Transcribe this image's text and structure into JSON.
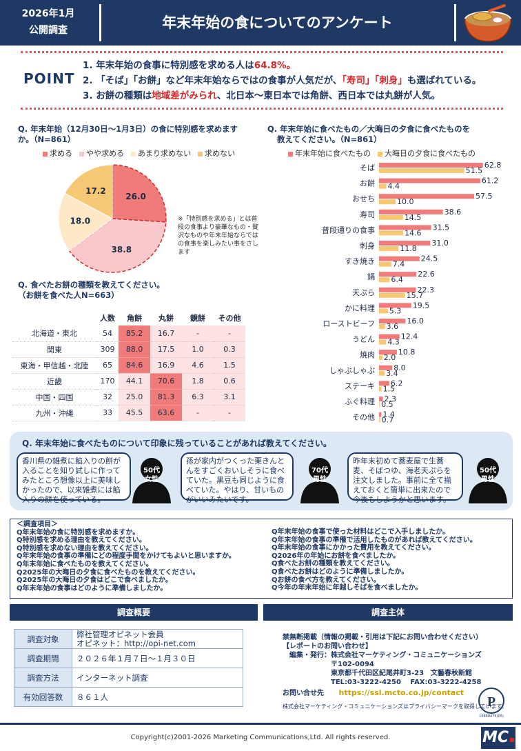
{
  "header": {
    "date_line1": "2026年1月",
    "date_line2": "公開調査",
    "title": "年末年始の食についてのアンケート"
  },
  "point": {
    "label": "POINT",
    "items": [
      {
        "num": "1.",
        "pre": "年末年始の食事に特別感を求める人は",
        "hl": "64.8%。",
        "post": ""
      },
      {
        "num": "2.",
        "pre": "「そば」「お餅」など年末年始ならではの食事が人気だが、",
        "hl": "「寿司」「刺身」",
        "post": "も選ばれている。"
      },
      {
        "num": "3.",
        "pre": "お餅の種類は",
        "hl": "地域差がみられ",
        "post": "、北日本～東日本では角餅、西日本では丸餅が人気。"
      }
    ]
  },
  "q1": {
    "title1": "Q. 年末年始（12月30日～1月3日）の食に特別感を求めます",
    "title2": "か。（N=861）",
    "legend": [
      "求める",
      "やや求める",
      "あまり求めない",
      "求めない"
    ],
    "note": "※「特別感を求める」とは普段の食事より豪華なもの・贅沢なものや年末年始ならではの食事を楽しみたい事をさします"
  },
  "q2": {
    "title1": "Q. 食べたお餅の種類を教えてください。",
    "title2": "（お餅を食べた人N=663）",
    "headers": [
      "人数",
      "角餅",
      "丸餅",
      "鏡餅",
      "その他"
    ],
    "rows": [
      {
        "region": "北海道・東北",
        "n": "54",
        "v": [
          "85.2",
          "16.7",
          "-",
          "-"
        ]
      },
      {
        "region": "関東",
        "n": "309",
        "v": [
          "88.0",
          "17.5",
          "1.0",
          "0.3"
        ]
      },
      {
        "region": "東海・甲信越・北陸",
        "n": "65",
        "v": [
          "84.6",
          "16.9",
          "4.6",
          "1.5"
        ]
      },
      {
        "region": "近畿",
        "n": "170",
        "v": [
          "44.1",
          "70.6",
          "1.8",
          "0.6"
        ]
      },
      {
        "region": "中国・四国",
        "n": "32",
        "v": [
          "25.0",
          "81.3",
          "6.3",
          "3.1"
        ]
      },
      {
        "region": "九州・沖縄",
        "n": "33",
        "v": [
          "45.5",
          "63.6",
          "-",
          "-"
        ]
      }
    ]
  },
  "q3": {
    "title1": "Q. 年末年始に食べたもの／大晦日の夕食に食べたものを",
    "title2": "教えてください。（N=861）"
  },
  "chart_data": [
    {
      "type": "pie",
      "labels": [
        "求める",
        "やや求める",
        "あまり求めない",
        "求めない"
      ],
      "values": [
        26.0,
        38.8,
        18.0,
        17.2
      ],
      "colors": [
        "#f07b7b",
        "#f8c8cc",
        "#fde9c8",
        "#f7c874"
      ]
    },
    {
      "type": "bar",
      "orientation": "horizontal",
      "categories": [
        "そば",
        "お餅",
        "おせち",
        "寿司",
        "普段通りの食事",
        "刺身",
        "すき焼き",
        "鍋",
        "天ぷら",
        "かに料理",
        "ローストビーフ",
        "うどん",
        "焼肉",
        "しゃぶしゃぶ",
        "ステーキ",
        "ふぐ料理",
        "その他"
      ],
      "series": [
        {
          "name": "年末年始に食べたもの",
          "color": "#f07b7b",
          "values": [
            62.8,
            61.2,
            57.5,
            38.6,
            31.5,
            31.0,
            24.5,
            22.6,
            22.3,
            19.5,
            16.0,
            12.4,
            10.8,
            8.0,
            6.2,
            2.3,
            1.4
          ]
        },
        {
          "name": "大晦日の夕食に食べたもの",
          "color": "#f7c874",
          "values": [
            51.5,
            4.4,
            10.0,
            14.5,
            14.6,
            11.8,
            7.4,
            6.4,
            15.7,
            5.3,
            3.6,
            4.3,
            2.0,
            3.4,
            1.5,
            0.5,
            0.7
          ]
        }
      ],
      "xlim": [
        0,
        70
      ]
    }
  ],
  "impressions": {
    "title": "Q. 年末年始に食べたものについて印象に残っていることがあれば教えてください。",
    "comments": [
      {
        "text": "香川県の雑煮に餡入りの餅が入ることを知り試しに作ってみたところ想像以上に美味しかったので、以来雑煮には餡入りの餅を使っている。",
        "age": "50代",
        "gender": "女性"
      },
      {
        "text": "孫が家内がつくった栗きんとんをすごくおいしそうに食べていた。黒豆も同じように食べていた。やはり、甘いものがいいみたいです。",
        "age": "70代",
        "gender": "男性"
      },
      {
        "text": "昨年末初めて蕎麦屋で生蕎麦、そばつゆ、海老天ぷらを注文しました。事前に全て揃えておくと簡単に出来たので今後もしようかと思います。",
        "age": "50代",
        "gender": "男性"
      }
    ]
  },
  "survey_items": {
    "heading": "＜調査項目＞",
    "left": [
      "Q年末年始の食に特別感を求めますか。",
      "Q特別感を求める理由を教えてください。",
      "Q特別感を求めない理由を教えてください。",
      "Q年末年始の食事の準備にどの程度手間をかけてもよいと思いますか。",
      "Q年末年始に食べたものを教えてください。",
      "Q2025年の大晦日の夕食に食べたものを教えてください。",
      "Q2025年の大晦日の夕食はどこで食べましたか。",
      "Q年末年始の食事はどのように準備しましたか。"
    ],
    "right": [
      "Q年末年始の食事で使った材料はどこで入手しましたか。",
      "Q年末年始の食事の準備で活用したものがあれば教えてください。",
      "Q年末年始の食事にかかった費用を教えてください。",
      "Q2026年の年始にお餅を食べましたか。",
      "Q食べたお餅の種類を教えてください。",
      "Q食べたお餅はどのように準備しましたか。",
      "Qお餅の食べ方を教えてください。",
      "Q今年の年末年始に年越しそばを食べましたか。"
    ]
  },
  "overview": {
    "title": "調査概要",
    "rows": [
      {
        "k": "調査対象",
        "v1": "弊社管理オピネット会員",
        "v2": "オピネット：http://opi-net.com"
      },
      {
        "k": "調査期間",
        "v1": "２０２６年１月７日～１月３０日",
        "v2": ""
      },
      {
        "k": "調査方法",
        "v1": "インターネット調査",
        "v2": ""
      },
      {
        "k": "有効回答数",
        "v1": "８６１人",
        "v2": ""
      }
    ]
  },
  "organizer": {
    "title": "調査主体",
    "lines": [
      "禁無断掲載（情報の掲載・引用は下記にお問い合わせください）",
      "【レポートのお問い合わせ】",
      "　編集・発行：株式会社マーケティング・コミュニケーションズ",
      "　　　　　　　〒102-0094",
      "　　　　　　　東京都千代田区紀尾井町3-23　文藝春秋新館",
      "　　　　　　　TEL:03-3222-4250　 FAX:03-3222-4258"
    ],
    "contact_label": "お問い合せ先",
    "contact_url": "https://ssl.mcto.co.jp/contact",
    "privacy": "株式会社マーケティング・コミュニケーションズはプライバシーマークを取得しています。",
    "pmark_code": "10860475(05)"
  },
  "footer": {
    "copyright": "Copyright(c)2001-2026 Marketing Communications,Ltd. All rights reserved.",
    "logo": "MC"
  }
}
